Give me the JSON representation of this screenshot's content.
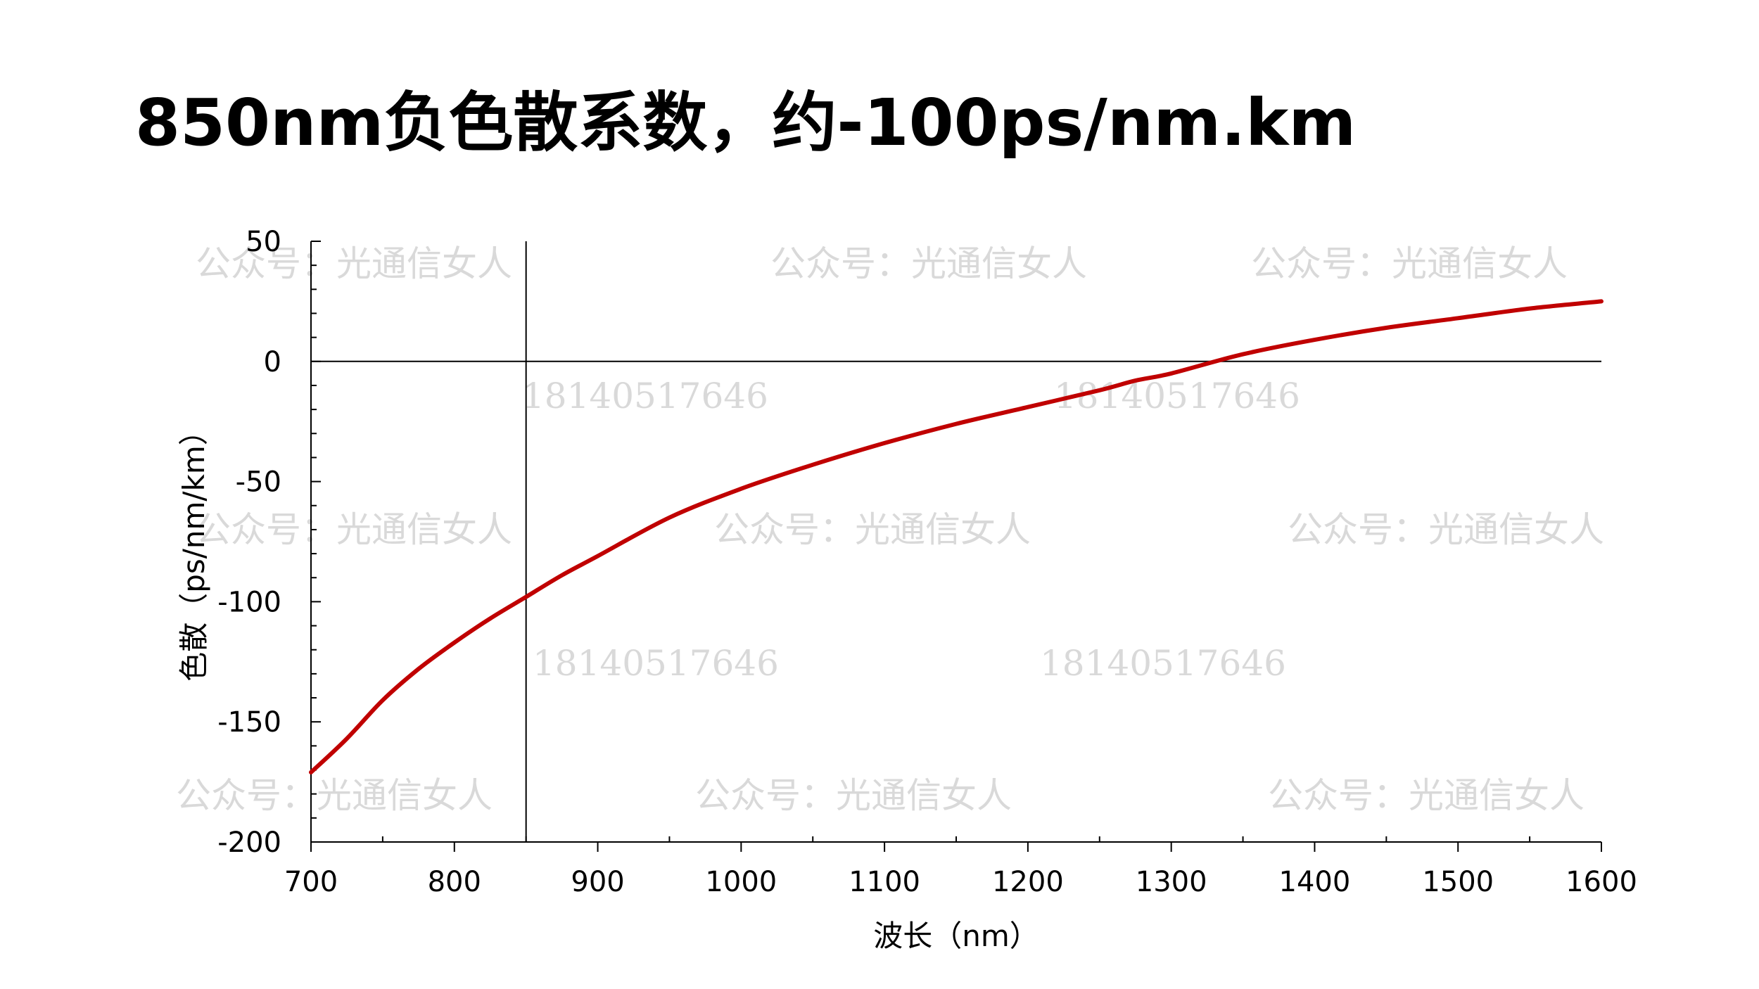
{
  "title": "850nm负色散系数，约-100ps/nm.km",
  "watermarks": {
    "account": "公众号：光通信女人",
    "phone": "18140517646"
  },
  "chart_data": {
    "type": "line",
    "xlabel": "波长（nm）",
    "ylabel": "色散（ps/nm/km）",
    "xlim": [
      700,
      1600
    ],
    "ylim": [
      -200,
      50
    ],
    "x_ticks": [
      700,
      800,
      900,
      1000,
      1100,
      1200,
      1300,
      1400,
      1500,
      1600
    ],
    "y_ticks": [
      50,
      0,
      -50,
      -100,
      -150,
      -200
    ],
    "grid": false,
    "reference_lines": {
      "x": 850,
      "y": 0
    },
    "series": [
      {
        "color": "#c00000",
        "x": [
          700,
          725,
          750,
          775,
          800,
          825,
          850,
          875,
          900,
          950,
          1000,
          1050,
          1100,
          1150,
          1200,
          1250,
          1275,
          1300,
          1350,
          1400,
          1450,
          1500,
          1550,
          1600
        ],
        "y": [
          -171,
          -157,
          -141,
          -128,
          -117,
          -107,
          -98,
          -89,
          -81,
          -65,
          -53,
          -43,
          -34,
          -26,
          -19,
          -12,
          -8,
          -5,
          3,
          9,
          14,
          18,
          22,
          25
        ]
      }
    ]
  }
}
